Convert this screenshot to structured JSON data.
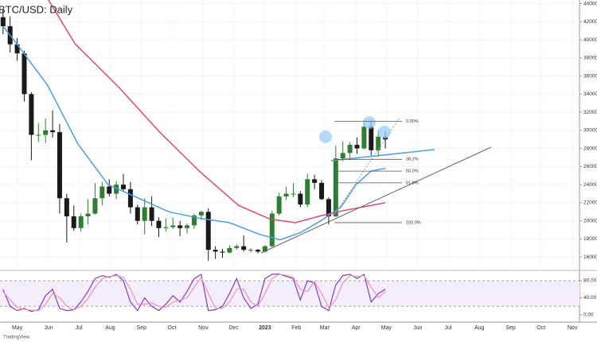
{
  "chart_data": [
    {
      "type": "candlestick",
      "title": "BTC/USD: Daily",
      "watermark": "TradingView",
      "x": [
        -14,
        -7,
        0,
        7,
        14,
        21,
        28,
        35,
        42,
        49,
        56,
        63,
        70,
        77,
        84,
        91,
        98,
        105,
        112,
        119,
        126,
        133,
        140,
        147,
        154,
        161,
        168,
        175,
        182,
        189,
        196,
        203,
        210,
        217,
        224,
        231,
        238,
        245,
        252,
        259,
        266,
        273,
        280,
        287,
        294,
        301,
        308,
        315,
        322,
        329,
        336,
        343,
        350,
        357,
        364
      ],
      "open": [
        42500,
        41500,
        39500,
        38500,
        34000,
        29500,
        29500,
        30000,
        29800,
        22500,
        20500,
        19200,
        20500,
        20800,
        22500,
        23800,
        23000,
        24000,
        23500,
        21500,
        20000,
        21500,
        20000,
        19200,
        19300,
        19500,
        19200,
        19500,
        20600,
        21000,
        16800,
        16600,
        16500,
        17000,
        17200,
        16800,
        16800,
        16600,
        17200,
        20800,
        22700,
        23000,
        23000,
        21800,
        24600,
        24200,
        22400,
        20500,
        26900,
        27500,
        28400,
        28000,
        30400,
        27800,
        29300
      ],
      "high": [
        43300,
        42600,
        40200,
        38800,
        34200,
        30800,
        31300,
        32200,
        30700,
        23000,
        21700,
        20800,
        22400,
        24200,
        24300,
        24600,
        24400,
        25200,
        24300,
        21800,
        22500,
        22700,
        20400,
        20300,
        20400,
        20000,
        19700,
        20800,
        21100,
        21400,
        17200,
        16900,
        17300,
        17400,
        18400,
        17000,
        16900,
        17300,
        21100,
        23100,
        23800,
        24200,
        23300,
        25200,
        25100,
        24500,
        22600,
        28300,
        28800,
        28700,
        29200,
        30900,
        31000,
        30000,
        29900
      ],
      "low": [
        40600,
        38600,
        37700,
        33200,
        26700,
        28700,
        28600,
        29200,
        20800,
        17600,
        18900,
        18800,
        19600,
        20700,
        21700,
        22700,
        22400,
        23300,
        20800,
        19600,
        18500,
        19400,
        18200,
        18800,
        19100,
        18300,
        18600,
        19100,
        20100,
        15600,
        15800,
        15900,
        16400,
        16800,
        16600,
        16500,
        16400,
        16500,
        17100,
        20600,
        22300,
        22600,
        21500,
        21500,
        23500,
        22300,
        19600,
        20400,
        26600,
        26700,
        27400,
        27900,
        27200,
        27100,
        28000
      ],
      "close": [
        41500,
        39500,
        38500,
        34000,
        29500,
        29500,
        30000,
        29800,
        22500,
        20500,
        19200,
        20500,
        20800,
        22500,
        23800,
        23000,
        24000,
        23500,
        21500,
        20000,
        21500,
        20000,
        19200,
        19300,
        19500,
        19200,
        19500,
        20600,
        21000,
        16800,
        16600,
        16500,
        17000,
        17200,
        16800,
        16800,
        16600,
        17200,
        20800,
        22700,
        23000,
        23000,
        21800,
        24600,
        24200,
        22400,
        20500,
        26900,
        27500,
        28400,
        28000,
        30400,
        27800,
        29300,
        29000
      ],
      "up_color": "#2e7d32",
      "down_color": "#1a1a1a",
      "lines": [
        {
          "color": "#4a9fe0",
          "x": [
            -14,
            0,
            30,
            60,
            90,
            120,
            150,
            180,
            210,
            240,
            260,
            280,
            300,
            320,
            335,
            350,
            364
          ],
          "values": [
            41500,
            39500,
            35000,
            28500,
            24000,
            22500,
            21000,
            20300,
            19800,
            18500,
            17900,
            18700,
            20000,
            21500,
            24000,
            25500,
            25800
          ]
        },
        {
          "color": "#e0457b",
          "x": [
            25,
            57,
            101,
            140,
            180,
            219,
            250,
            275,
            298,
            321,
            364
          ],
          "values": [
            45500,
            39600,
            34700,
            29900,
            25500,
            21700,
            20200,
            19800,
            20500,
            21100,
            22000
          ]
        }
      ],
      "fib_levels": [
        {
          "label": "0.00%",
          "value": 31000
        },
        {
          "label": "38.2%",
          "value": 26800
        },
        {
          "label": "50.0%",
          "value": 25500
        },
        {
          "label": "61.8%",
          "value": 24200
        },
        {
          "label": "100.0%",
          "value": 19800
        }
      ],
      "xlim": [
        -17,
        556
      ],
      "xticks": [
        {
          "value": 0,
          "label": "May"
        },
        {
          "value": 31,
          "label": "Jun"
        },
        {
          "value": 61,
          "label": "Jul"
        },
        {
          "value": 92,
          "label": "Aug"
        },
        {
          "value": 123,
          "label": "Sep"
        },
        {
          "value": 153,
          "label": "Oct"
        },
        {
          "value": 184,
          "label": "Nov"
        },
        {
          "value": 214,
          "label": "Dec"
        },
        {
          "value": 245,
          "label": "2023"
        },
        {
          "value": 276,
          "label": "Feb"
        },
        {
          "value": 304,
          "label": "Mar"
        },
        {
          "value": 335,
          "label": "Apr"
        },
        {
          "value": 365,
          "label": "May"
        },
        {
          "value": 396,
          "label": "Jun"
        },
        {
          "value": 426,
          "label": "Jul"
        },
        {
          "value": 457,
          "label": "Aug"
        },
        {
          "value": 488,
          "label": "Sep"
        },
        {
          "value": 518,
          "label": "Oct"
        },
        {
          "value": 549,
          "label": "Nov"
        }
      ],
      "ylim": [
        14700,
        44400
      ],
      "yticks": [
        16000,
        18000,
        20000,
        22000,
        24000,
        26000,
        28000,
        30000,
        32000,
        34000,
        36000,
        38000,
        40000,
        42000,
        44000
      ]
    },
    {
      "type": "line",
      "x": [
        -14,
        -7,
        0,
        7,
        14,
        21,
        28,
        35,
        42,
        49,
        56,
        63,
        70,
        77,
        84,
        91,
        98,
        105,
        112,
        119,
        126,
        133,
        140,
        147,
        154,
        161,
        168,
        175,
        182,
        189,
        196,
        203,
        210,
        217,
        224,
        231,
        238,
        245,
        252,
        259,
        266,
        273,
        280,
        287,
        294,
        301,
        308,
        315,
        322,
        329,
        336,
        343,
        350,
        357,
        364
      ],
      "series": [
        {
          "color": "#7b3fc4",
          "values": [
            60,
            20,
            10,
            15,
            8,
            12,
            45,
            60,
            15,
            10,
            12,
            30,
            55,
            85,
            92,
            88,
            95,
            80,
            30,
            10,
            40,
            20,
            10,
            25,
            45,
            30,
            55,
            85,
            95,
            10,
            12,
            20,
            50,
            85,
            40,
            15,
            25,
            85,
            95,
            96,
            90,
            85,
            35,
            80,
            75,
            20,
            10,
            70,
            92,
            95,
            85,
            95,
            30,
            50,
            60
          ]
        },
        {
          "color": "#f48fb1",
          "values": [
            55,
            35,
            18,
            13,
            11,
            10,
            25,
            50,
            40,
            20,
            12,
            20,
            38,
            65,
            85,
            90,
            92,
            88,
            60,
            25,
            25,
            28,
            20,
            18,
            30,
            35,
            40,
            65,
            88,
            50,
            15,
            15,
            30,
            60,
            60,
            30,
            20,
            50,
            85,
            95,
            93,
            88,
            60,
            55,
            78,
            50,
            18,
            35,
            75,
            92,
            90,
            92,
            65,
            40,
            55
          ]
        }
      ],
      "levels": [
        80,
        20
      ],
      "xlim": [
        -17,
        556
      ],
      "ylim": [
        -17,
        100.5
      ],
      "yticks": [
        {
          "value": 80,
          "label": "80.00"
        },
        {
          "value": 40,
          "label": "40.00"
        },
        {
          "value": 0,
          "label": "0.00"
        }
      ]
    }
  ]
}
